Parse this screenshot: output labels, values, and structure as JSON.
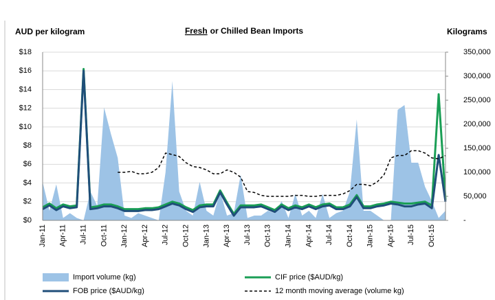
{
  "chart_data": {
    "type": "line",
    "title_parts": [
      "Fresh",
      "or Chilled Bean Imports"
    ],
    "y_label": "AUD per kilogram",
    "y2_label": "Kilograms",
    "categories": [
      "Jan-11",
      null,
      null,
      "Apr-11",
      null,
      null,
      "Jul-11",
      null,
      null,
      "Oct-11",
      null,
      null,
      "Jan-12",
      null,
      null,
      "Apr-12",
      null,
      null,
      "Jul-12",
      null,
      null,
      "Oct-12",
      null,
      null,
      "Jan-13",
      null,
      null,
      "Apr-13",
      null,
      null,
      "Jul-13",
      null,
      null,
      "Oct-13",
      null,
      null,
      "Jan-14",
      null,
      null,
      "Apr-14",
      null,
      null,
      "Jul-14",
      null,
      null,
      "Oct-14",
      null,
      null,
      "Jan-15",
      null,
      null,
      "Apr-15",
      null,
      null,
      "Jul-15",
      null,
      null,
      "Oct-15",
      null,
      null
    ],
    "ylim": [
      0,
      18
    ],
    "yticks": [
      {
        "value": 0,
        "label": "$0"
      },
      {
        "value": 2,
        "label": "$2"
      },
      {
        "value": 4,
        "label": "$4"
      },
      {
        "value": 6,
        "label": "$6"
      },
      {
        "value": 8,
        "label": "$8"
      },
      {
        "value": 10,
        "label": "$10"
      },
      {
        "value": 12,
        "label": "$12"
      },
      {
        "value": 14,
        "label": "$14"
      },
      {
        "value": 16,
        "label": "$16"
      },
      {
        "value": 18,
        "label": "$18"
      }
    ],
    "y2lim": [
      0,
      350000
    ],
    "y2ticks": [
      {
        "value": 0,
        "label": "-"
      },
      {
        "value": 50000,
        "label": "50,000"
      },
      {
        "value": 100000,
        "label": "100,000"
      },
      {
        "value": 150000,
        "label": "150,000"
      },
      {
        "value": 200000,
        "label": "200,000"
      },
      {
        "value": 250000,
        "label": "250,000"
      },
      {
        "value": 300000,
        "label": "300,000"
      },
      {
        "value": 350000,
        "label": "350,000"
      }
    ],
    "grid": true,
    "series": [
      {
        "name": "Import volume (kg)",
        "type": "area",
        "axis": "y2",
        "color": "#9dc3e6",
        "values": [
          80000,
          20000,
          75000,
          5000,
          15000,
          5000,
          0,
          60000,
          30000,
          235000,
          180000,
          130000,
          10000,
          5000,
          15000,
          10000,
          5000,
          0,
          100000,
          290000,
          60000,
          20000,
          10000,
          80000,
          20000,
          10000,
          60000,
          10000,
          15000,
          95000,
          5000,
          10000,
          10000,
          20000,
          15000,
          40000,
          5000,
          55000,
          10000,
          20000,
          5000,
          55000,
          5000,
          15000,
          20000,
          60000,
          210000,
          20000,
          20000,
          10000,
          0,
          0,
          230000,
          240000,
          120000,
          120000,
          70000,
          40000,
          5000,
          20000
        ]
      },
      {
        "name": "CIF price ($AUD/kg)",
        "type": "line",
        "axis": "y",
        "color": "#1a9e55",
        "values": [
          1.4,
          1.8,
          1.3,
          1.7,
          1.5,
          1.6,
          16.2,
          1.4,
          1.5,
          1.7,
          1.7,
          1.5,
          1.2,
          1.2,
          1.2,
          1.3,
          1.3,
          1.4,
          1.7,
          2.0,
          1.8,
          1.4,
          1.1,
          1.6,
          1.7,
          1.7,
          3.2,
          1.9,
          0.7,
          1.6,
          1.6,
          1.6,
          1.7,
          1.4,
          1.1,
          1.7,
          1.3,
          1.6,
          1.4,
          1.7,
          1.4,
          1.7,
          1.8,
          1.4,
          1.4,
          1.7,
          2.7,
          1.5,
          1.5,
          1.7,
          1.8,
          2.0,
          1.9,
          1.8,
          1.8,
          1.9,
          2.0,
          1.6,
          13.5,
          2.2
        ]
      },
      {
        "name": "FOB price ($AUD/kg)",
        "type": "line",
        "axis": "y",
        "color": "#1f4e79",
        "values": [
          1.2,
          1.6,
          1.1,
          1.5,
          1.3,
          1.4,
          16.0,
          1.2,
          1.3,
          1.5,
          1.5,
          1.3,
          1.0,
          1.0,
          1.0,
          1.1,
          1.1,
          1.2,
          1.5,
          1.8,
          1.6,
          1.2,
          0.9,
          1.4,
          1.5,
          1.5,
          3.0,
          1.7,
          0.5,
          1.4,
          1.4,
          1.4,
          1.5,
          1.2,
          0.9,
          1.5,
          1.1,
          1.4,
          1.2,
          1.5,
          1.2,
          1.5,
          1.6,
          1.2,
          1.2,
          1.5,
          2.5,
          1.3,
          1.3,
          1.5,
          1.6,
          1.8,
          1.7,
          1.5,
          1.5,
          1.7,
          1.8,
          1.3,
          7.0,
          2.0
        ]
      },
      {
        "name": "12 month moving average (volume kg)",
        "type": "line",
        "dash": true,
        "axis": "y2",
        "color": "#000000",
        "values": [
          null,
          null,
          null,
          null,
          null,
          null,
          null,
          null,
          null,
          null,
          null,
          100000,
          100000,
          102000,
          97000,
          97000,
          100000,
          110000,
          140000,
          137000,
          133000,
          120000,
          112000,
          110000,
          105000,
          97000,
          97000,
          105000,
          100000,
          90000,
          60000,
          58000,
          52000,
          50000,
          50000,
          50000,
          50000,
          52000,
          52000,
          50000,
          50000,
          52000,
          52000,
          52000,
          55000,
          62000,
          75000,
          75000,
          72000,
          80000,
          95000,
          130000,
          135000,
          135000,
          145000,
          145000,
          140000,
          130000,
          128000,
          135000
        ]
      }
    ]
  }
}
